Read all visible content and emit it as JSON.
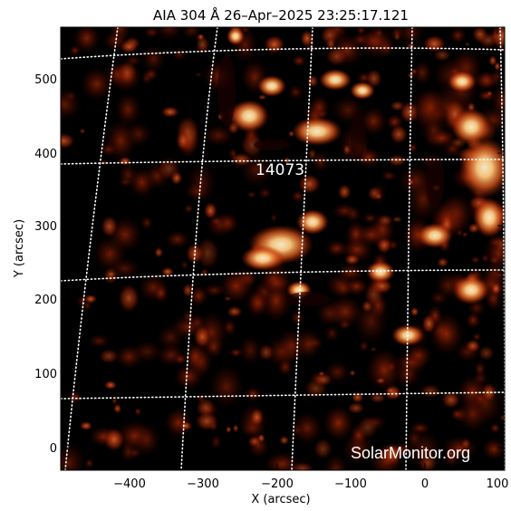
{
  "title": "AIA 304 Å 26–Apr–2025 23:25:17.121",
  "x_axis": {
    "label": "X (arcsec)",
    "ticks": [
      "−400",
      "−300",
      "−200",
      "−100",
      "0",
      "100"
    ]
  },
  "y_axis": {
    "label": "Y (arcsec)",
    "ticks": [
      "0",
      "100",
      "200",
      "300",
      "400",
      "500"
    ]
  },
  "region_label": "14073",
  "credit": "SolarMonitor.org",
  "colors": {
    "background": "#000000",
    "plasma_dark": "#3a0400",
    "plasma_mid": "#b8340a",
    "plasma_bright": "#ffd9a0",
    "grid": "#ffffff"
  }
}
